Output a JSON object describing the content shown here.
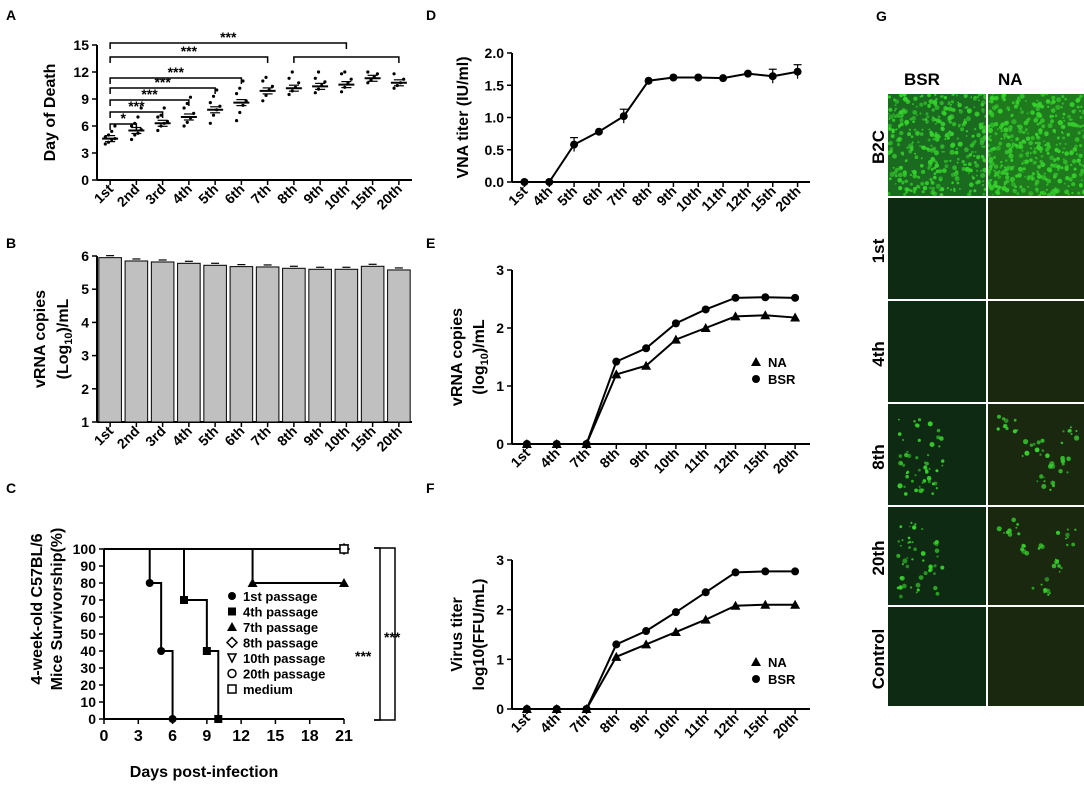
{
  "colors": {
    "bar": "#c0c0c0",
    "line": "#000000",
    "fluor_bg_dim": "#10210e",
    "fluor_bright": "#37d12e"
  },
  "chart_data": [
    {
      "id": "A",
      "type": "scatter",
      "panel": "A",
      "ylabel": "Day of Death",
      "categories": [
        "1st",
        "2nd",
        "3rd",
        "4th",
        "5th",
        "6th",
        "7th",
        "8th",
        "9th",
        "10th",
        "15th",
        "20th"
      ],
      "means": [
        4.6,
        5.5,
        6.3,
        7.0,
        7.8,
        8.6,
        9.9,
        10.2,
        10.4,
        10.6,
        11.3,
        10.8
      ],
      "points": [
        [
          4.0,
          4.2,
          4.5,
          4.6,
          4.8,
          5.0,
          5.4,
          6.0
        ],
        [
          4.5,
          5.0,
          5.2,
          5.6,
          6.0,
          6.3,
          7.0,
          8.0
        ],
        [
          5.5,
          6.0,
          6.3,
          6.5,
          7.0,
          7.2,
          8.0
        ],
        [
          6.0,
          6.4,
          6.9,
          7.4,
          8.0,
          8.5,
          9.2
        ],
        [
          6.3,
          7.2,
          7.8,
          8.2,
          8.6,
          9.3,
          10.0
        ],
        [
          6.6,
          7.5,
          8.3,
          8.8,
          9.6,
          10.2,
          11.0
        ],
        [
          8.8,
          9.4,
          10.0,
          10.4,
          11.0,
          11.4
        ],
        [
          9.5,
          9.9,
          10.3,
          10.8,
          11.3,
          12.0
        ],
        [
          9.7,
          10.1,
          10.5,
          10.9,
          11.3,
          12.0
        ],
        [
          9.8,
          10.3,
          10.8,
          11.2,
          11.8,
          12.0
        ],
        [
          10.8,
          11.1,
          11.5,
          11.8,
          12.0
        ],
        [
          10.2,
          10.5,
          10.8,
          11.2,
          11.8
        ]
      ],
      "ylim": [
        0,
        15
      ],
      "yticks": [
        0,
        3,
        6,
        9,
        12,
        15
      ],
      "significance": [
        {
          "from": 0,
          "to": 1,
          "label": "*"
        },
        {
          "from": 0,
          "to": 2,
          "label": "***"
        },
        {
          "from": 0,
          "to": 3,
          "label": "***"
        },
        {
          "from": 0,
          "to": 4,
          "label": "***"
        },
        {
          "from": 0,
          "to": 5,
          "label": "***"
        },
        {
          "from": 0,
          "to": 6,
          "label": "***"
        },
        {
          "from": 0,
          "to": 9,
          "label": "***"
        },
        {
          "from": 7,
          "to": 11,
          "label": ""
        }
      ]
    },
    {
      "id": "B",
      "type": "bar",
      "panel": "B",
      "ylabel_line1": "vRNA copies",
      "ylabel_line2_pre": "(Log",
      "ylabel_line2_sub": "10",
      "ylabel_line2_post": ")/mL",
      "categories": [
        "1st",
        "2nd",
        "3rd",
        "4th",
        "5th",
        "6th",
        "7th",
        "8th",
        "9th",
        "10th",
        "15th",
        "20th"
      ],
      "values": [
        5.95,
        5.85,
        5.82,
        5.78,
        5.72,
        5.68,
        5.67,
        5.63,
        5.6,
        5.6,
        5.69,
        5.58
      ],
      "ylim": [
        1,
        6
      ],
      "yticks": [
        1,
        2,
        3,
        4,
        5,
        6
      ]
    },
    {
      "id": "C",
      "type": "line",
      "panel": "C",
      "ylabel_line1": "4-week-old C57BL/6",
      "ylabel_line2": "Mice Survivorship(%)",
      "xlabel": "Days post-infection",
      "xlim": [
        0,
        21
      ],
      "xticks": [
        0,
        3,
        6,
        9,
        12,
        15,
        18,
        21
      ],
      "ylim": [
        0,
        100
      ],
      "yticks": [
        0,
        10,
        20,
        30,
        40,
        50,
        60,
        70,
        80,
        90,
        100
      ],
      "series": [
        {
          "name": "1st passage",
          "marker": "circle",
          "x": [
            0,
            4,
            5,
            6
          ],
          "y": [
            100,
            80,
            40,
            0
          ]
        },
        {
          "name": "4th passage",
          "marker": "square",
          "x": [
            0,
            7,
            9,
            10
          ],
          "y": [
            100,
            70,
            40,
            0
          ]
        },
        {
          "name": "7th passage",
          "marker": "triangle",
          "x": [
            0,
            13,
            21
          ],
          "y": [
            100,
            80,
            80
          ]
        },
        {
          "name": "8th passage",
          "marker": "diamond-open",
          "x": [
            0,
            21
          ],
          "y": [
            100,
            100
          ]
        },
        {
          "name": "10th passage",
          "marker": "tri-down-open",
          "x": [
            0,
            21
          ],
          "y": [
            100,
            100
          ]
        },
        {
          "name": "20th passage",
          "marker": "circle-open",
          "x": [
            0,
            21
          ],
          "y": [
            100,
            100
          ]
        },
        {
          "name": "medium",
          "marker": "square-open",
          "x": [
            0,
            21
          ],
          "y": [
            100,
            100
          ]
        }
      ],
      "significance": [
        "***",
        "***"
      ]
    },
    {
      "id": "D",
      "type": "line",
      "panel": "D",
      "ylabel": "VNA titer (IU/ml)",
      "categories": [
        "1st",
        "4th",
        "5th",
        "6th",
        "7th",
        "8th",
        "9th",
        "10th",
        "11th",
        "12th",
        "15th",
        "20th"
      ],
      "values": [
        0,
        0,
        0.58,
        0.78,
        1.02,
        1.57,
        1.62,
        1.62,
        1.61,
        1.68,
        1.64,
        1.71
      ],
      "ylim": [
        0,
        2.0
      ],
      "yticks": [
        0.0,
        0.5,
        1.0,
        1.5,
        2.0
      ],
      "ytick_labels": [
        "0.0",
        "0.5",
        "1.0",
        "1.5",
        "2.0"
      ]
    },
    {
      "id": "E",
      "type": "line",
      "panel": "E",
      "ylabel_line1": "vRNA copies",
      "ylabel_line2_pre": "(log",
      "ylabel_line2_sub": "10",
      "ylabel_line2_post": ")/mL",
      "categories": [
        "1st",
        "4th",
        "7th",
        "8th",
        "9th",
        "10th",
        "11th",
        "12th",
        "15th",
        "20th"
      ],
      "series": [
        {
          "name": "NA",
          "marker": "triangle",
          "values": [
            0,
            0,
            0,
            1.2,
            1.35,
            1.8,
            2.0,
            2.2,
            2.22,
            2.18
          ]
        },
        {
          "name": "BSR",
          "marker": "circle",
          "values": [
            0,
            0,
            0,
            1.42,
            1.65,
            2.08,
            2.32,
            2.52,
            2.53,
            2.52
          ]
        }
      ],
      "ylim": [
        0,
        3
      ],
      "yticks": [
        0,
        1,
        2,
        3
      ]
    },
    {
      "id": "F",
      "type": "line",
      "panel": "F",
      "ylabel_line1": "Virus titer",
      "ylabel_line2": "log10(FFU/mL)",
      "categories": [
        "1st",
        "4th",
        "7th",
        "8th",
        "9th",
        "10th",
        "11th",
        "12th",
        "15th",
        "20th"
      ],
      "series": [
        {
          "name": "NA",
          "marker": "triangle",
          "values": [
            0,
            0,
            0,
            1.05,
            1.3,
            1.55,
            1.8,
            2.08,
            2.1,
            2.1
          ]
        },
        {
          "name": "BSR",
          "marker": "circle",
          "values": [
            0,
            0,
            0,
            1.3,
            1.57,
            1.95,
            2.35,
            2.75,
            2.77,
            2.77
          ]
        }
      ],
      "ylim": [
        0,
        3
      ],
      "yticks": [
        0,
        1,
        2,
        3
      ]
    }
  ],
  "panel_g": {
    "panel_label": "G",
    "columns": [
      "BSR",
      "NA"
    ],
    "rows": [
      "B2C",
      "1st",
      "4th",
      "8th",
      "20th",
      "Control"
    ],
    "intensity": [
      [
        0.9,
        0.95
      ],
      [
        0.0,
        0.0
      ],
      [
        0.0,
        0.0
      ],
      [
        0.45,
        0.4
      ],
      [
        0.4,
        0.35
      ],
      [
        0.0,
        0.0
      ]
    ]
  }
}
